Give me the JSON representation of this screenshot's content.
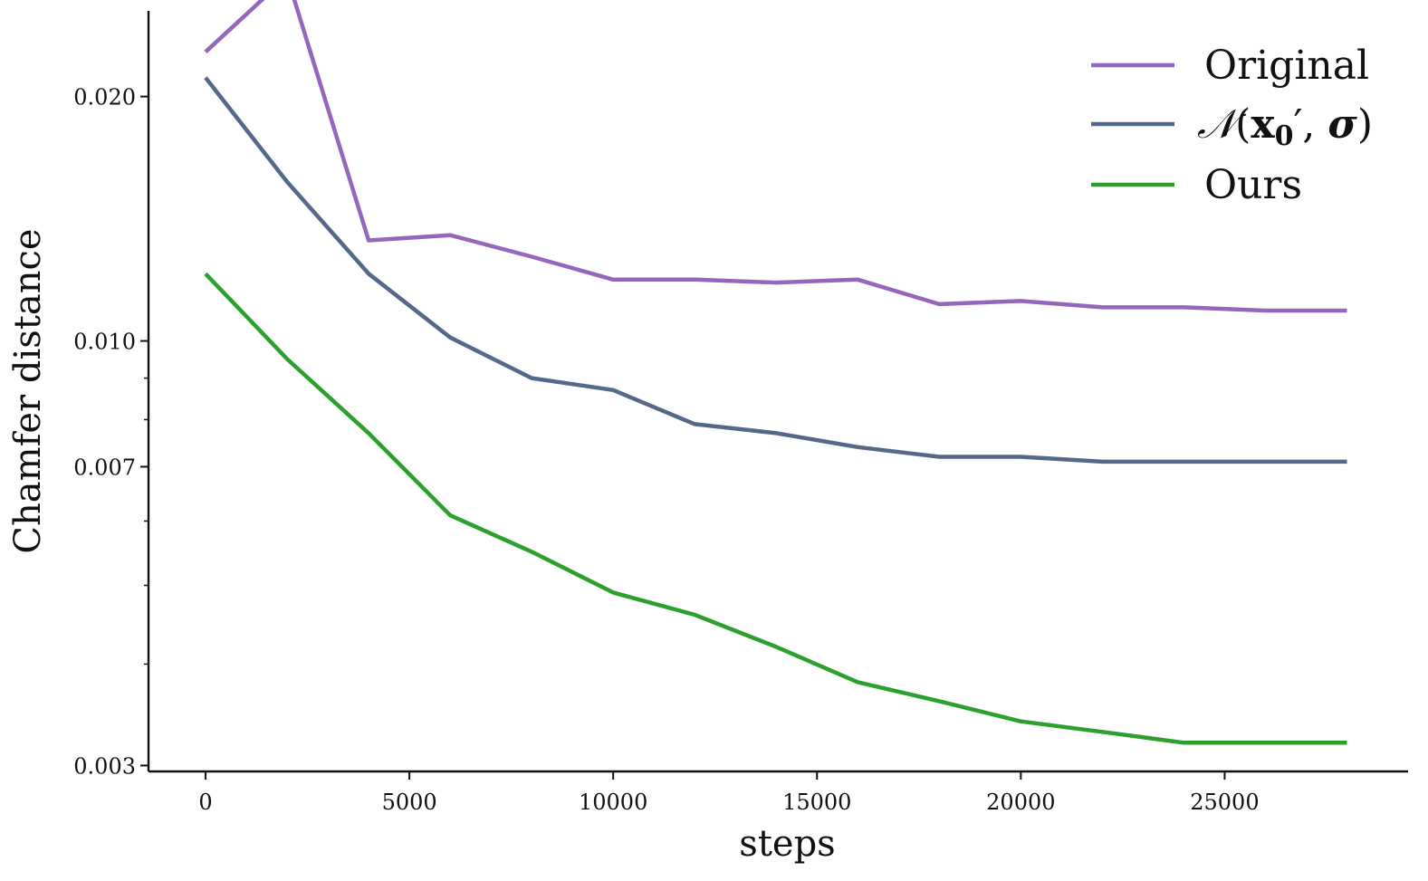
{
  "chart_data": {
    "type": "line",
    "xlabel": "steps",
    "ylabel": "Chamfer distance",
    "xlim": [
      -1400,
      29500
    ],
    "ylim": [
      0.00295,
      0.0255
    ],
    "yscale": "log",
    "x_ticks": [
      0,
      5000,
      10000,
      15000,
      20000,
      25000
    ],
    "x_tick_labels": [
      "0",
      "5000",
      "10000",
      "15000",
      "20000",
      "25000"
    ],
    "y_ticks": [
      0.003,
      0.007,
      0.01,
      0.02
    ],
    "y_tick_labels": [
      "0.003",
      "0.007",
      "0.010",
      "0.020"
    ],
    "y_minor_ticks": [
      0.004,
      0.005,
      0.006,
      0.008,
      0.009
    ],
    "grid": false,
    "legend_position": "top-right",
    "x": [
      0,
      2000,
      4000,
      6000,
      8000,
      10000,
      12000,
      14000,
      16000,
      18000,
      20000,
      22000,
      24000,
      26000,
      28000
    ],
    "series": [
      {
        "name": "Original",
        "color": "#9467bd",
        "values": [
          0.0227,
          0.0281,
          0.0133,
          0.0135,
          0.0127,
          0.0119,
          0.0119,
          0.0118,
          0.0119,
          0.0111,
          0.0112,
          0.011,
          0.011,
          0.0109,
          0.0109
        ]
      },
      {
        "name": "𝒩(x₀′, σ)",
        "color": "#56688a",
        "values": [
          0.0211,
          0.0157,
          0.0121,
          0.0101,
          0.009,
          0.0087,
          0.0079,
          0.0077,
          0.0074,
          0.0072,
          0.0072,
          0.0071,
          0.0071,
          0.0071,
          0.0071
        ]
      },
      {
        "name": "Ours",
        "color": "#2ca02c",
        "values": [
          0.0121,
          0.0095,
          0.0077,
          0.0061,
          0.0055,
          0.0049,
          0.0046,
          0.0042,
          0.0038,
          0.0036,
          0.0034,
          0.0033,
          0.0032,
          0.0032,
          0.0032
        ]
      }
    ]
  }
}
